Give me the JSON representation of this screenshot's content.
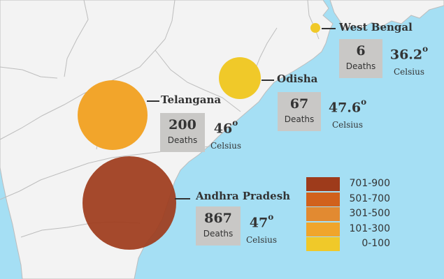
{
  "map": {
    "colors": {
      "sea": "#a5dff4",
      "land": "#f3f3f3",
      "border": "#bdbdbd",
      "text": "#333333",
      "box": "#c9c8c6"
    }
  },
  "states": [
    {
      "id": "west-bengal",
      "name": "West Bengal",
      "deaths": "6",
      "deaths_label": "Deaths",
      "temp": "36.2",
      "degree": "o",
      "temp_unit": "Celsius",
      "color": "#f0c929"
    },
    {
      "id": "odisha",
      "name": "Odisha",
      "deaths": "67",
      "deaths_label": "Deaths",
      "temp": "47.6",
      "degree": "o",
      "temp_unit": "Celsius",
      "color": "#f0c929"
    },
    {
      "id": "telangana",
      "name": "Telangana",
      "deaths": "200",
      "deaths_label": "Deaths",
      "temp": "46",
      "degree": "o",
      "temp_unit": "Celsius",
      "color": "#f2a52b"
    },
    {
      "id": "andhra-pradesh",
      "name": "Andhra Pradesh",
      "deaths": "867",
      "deaths_label": "Deaths",
      "temp": "47",
      "degree": "o",
      "temp_unit": "Celsius",
      "color": "#9e3b1b"
    }
  ],
  "legend": [
    {
      "label": "701-900",
      "color": "#9e3b1b"
    },
    {
      "label": "501-700",
      "color": "#d1611c"
    },
    {
      "label": "301-500",
      "color": "#e28a31"
    },
    {
      "label": "101-300",
      "color": "#f0a52b"
    },
    {
      "label": "0-100",
      "color": "#f0c929"
    }
  ]
}
